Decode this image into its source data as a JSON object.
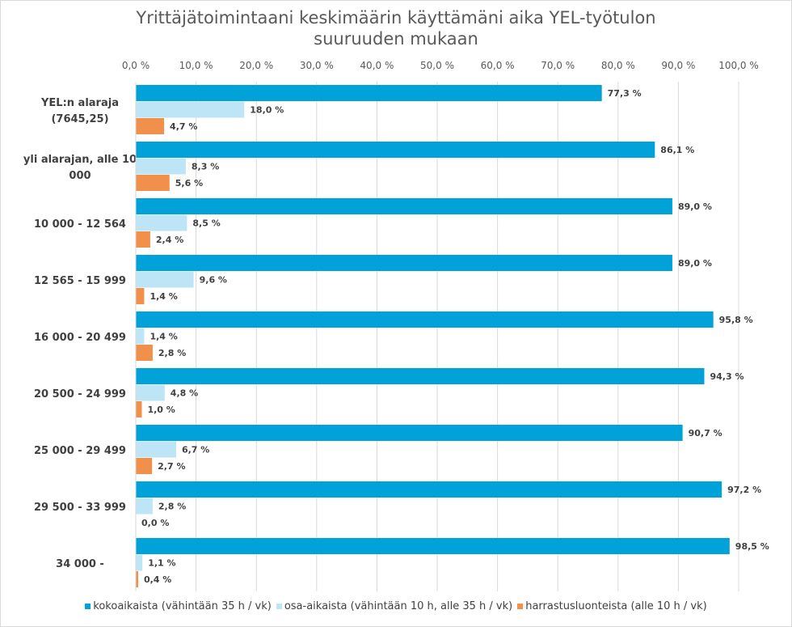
{
  "chart_data": {
    "type": "bar",
    "orientation": "horizontal",
    "title": "Yrittäjätoimintaani keskimäärin käyttämäni aika YEL-työtulon suuruuden mukaan",
    "title_lines": [
      "Yrittäjätoimintaani keskimäärin käyttämäni aika YEL-työtulon",
      "suuruuden mukaan"
    ],
    "categories": [
      [
        "YEL:n alaraja",
        "(7645,25)"
      ],
      [
        "yli alarajan, alle 10",
        "000"
      ],
      [
        "10 000 - 12 564"
      ],
      [
        "12 565 - 15 999"
      ],
      [
        "16 000 - 20 499"
      ],
      [
        "20 500 - 24 999"
      ],
      [
        "25 000 - 29 499"
      ],
      [
        "29 500 - 33 999"
      ],
      [
        "34 000 -"
      ]
    ],
    "xlim": [
      0,
      100
    ],
    "xticks": [
      "0,0 %",
      "10,0 %",
      "20,0 %",
      "30,0 %",
      "40,0 %",
      "50,0 %",
      "60,0 %",
      "70,0 %",
      "80,0 %",
      "90,0 %",
      "100,0 %"
    ],
    "x_axis_position": "top",
    "grid": true,
    "legend": "bottom",
    "series": [
      {
        "name": "kokoaikaista (vähintään 35 h / vk)",
        "color": "#00a2d9",
        "values": [
          77.3,
          86.1,
          89.0,
          89.0,
          95.8,
          94.3,
          90.7,
          97.2,
          98.5
        ],
        "labels": [
          "77,3 %",
          "86,1 %",
          "89,0 %",
          "89,0 %",
          "95,8 %",
          "94,3 %",
          "90,7 %",
          "97,2 %",
          "98,5 %"
        ]
      },
      {
        "name": "osa-aikaista (vähintään 10 h, alle 35 h / vk)",
        "color": "#bde5f6",
        "values": [
          18.0,
          8.3,
          8.5,
          9.6,
          1.4,
          4.8,
          6.7,
          2.8,
          1.1
        ],
        "labels": [
          "18,0 %",
          "8,3 %",
          "8,5 %",
          "9,6 %",
          "1,4 %",
          "4,8 %",
          "6,7 %",
          "2,8 %",
          "1,1 %"
        ]
      },
      {
        "name": "harrastusluonteista (alle 10 h / vk)",
        "color": "#f0904a",
        "values": [
          4.7,
          5.6,
          2.4,
          1.4,
          2.8,
          1.0,
          2.7,
          0.0,
          0.4
        ],
        "labels": [
          "4,7 %",
          "5,6 %",
          "2,4 %",
          "1,4 %",
          "2,8 %",
          "1,0 %",
          "2,7 %",
          "0,0 %",
          "0,4 %"
        ]
      }
    ]
  }
}
